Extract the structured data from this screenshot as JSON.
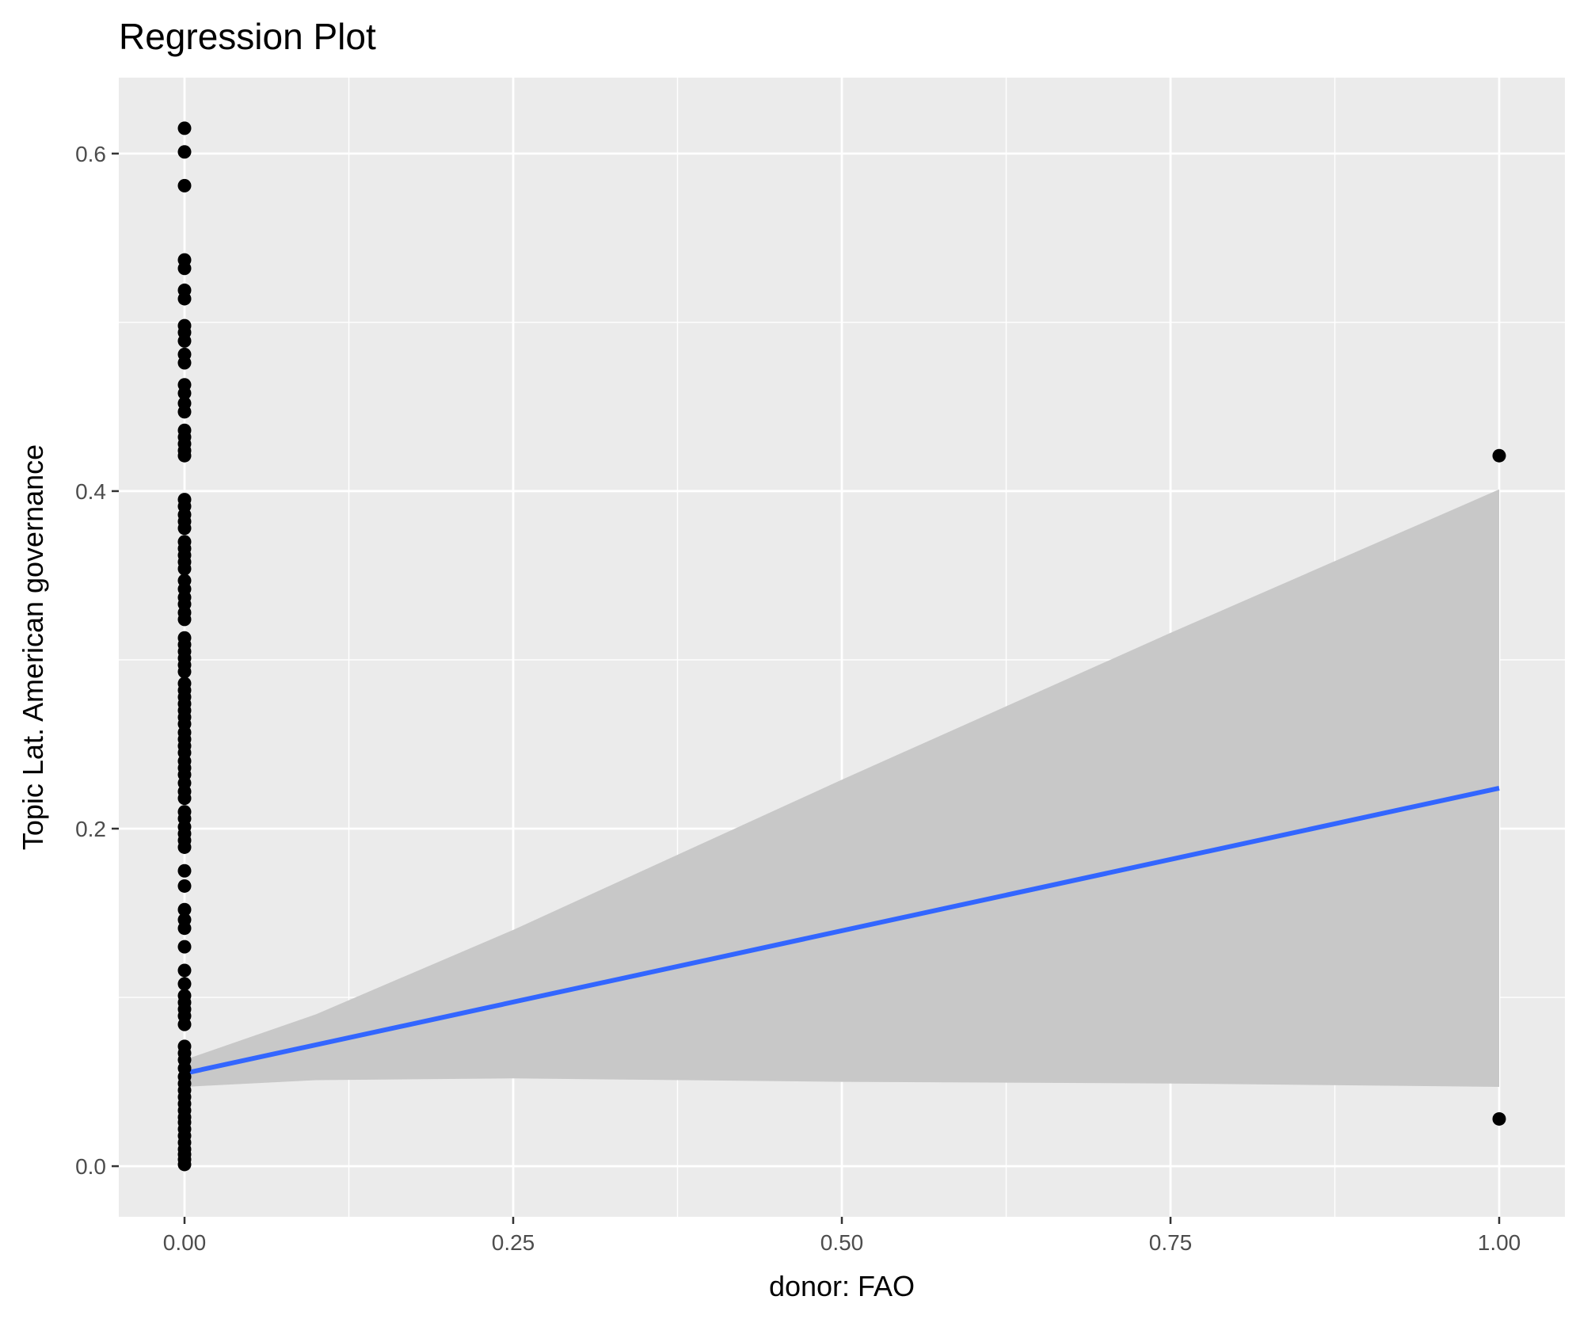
{
  "chart_data": {
    "type": "scatter",
    "title": "Regression Plot",
    "xlabel": "donor: FAO",
    "ylabel": "Topic Lat. American governance",
    "xlim": [
      -0.05,
      1.05
    ],
    "ylim": [
      -0.03,
      0.645
    ],
    "x_ticks": [
      0.0,
      0.25,
      0.5,
      0.75,
      1.0
    ],
    "x_tick_labels": [
      "0.00",
      "0.25",
      "0.50",
      "0.75",
      "1.00"
    ],
    "y_ticks": [
      0.0,
      0.2,
      0.4,
      0.6
    ],
    "y_tick_labels": [
      "0.0",
      "0.2",
      "0.4",
      "0.6"
    ],
    "grid": true,
    "legend": "none",
    "colors": {
      "panel": "#ebebeb",
      "grid": "#ffffff",
      "points": "#000000",
      "fit_line": "#3366ff",
      "confidence_band": "#c8c8c8"
    },
    "points": {
      "x0_y_values": [
        0.615,
        0.601,
        0.581,
        0.537,
        0.532,
        0.519,
        0.514,
        0.498,
        0.494,
        0.489,
        0.481,
        0.476,
        0.463,
        0.458,
        0.452,
        0.447,
        0.436,
        0.432,
        0.428,
        0.424,
        0.421,
        0.395,
        0.391,
        0.386,
        0.382,
        0.378,
        0.37,
        0.366,
        0.362,
        0.358,
        0.354,
        0.347,
        0.342,
        0.337,
        0.333,
        0.328,
        0.324,
        0.313,
        0.309,
        0.305,
        0.301,
        0.297,
        0.293,
        0.286,
        0.282,
        0.278,
        0.274,
        0.27,
        0.266,
        0.262,
        0.257,
        0.253,
        0.249,
        0.245,
        0.24,
        0.236,
        0.232,
        0.227,
        0.222,
        0.218,
        0.21,
        0.206,
        0.201,
        0.197,
        0.193,
        0.189,
        0.175,
        0.166,
        0.152,
        0.146,
        0.141,
        0.13,
        0.116,
        0.108,
        0.101,
        0.097,
        0.093,
        0.089,
        0.084,
        0.071,
        0.067,
        0.063,
        0.058,
        0.053,
        0.049,
        0.045,
        0.041,
        0.037,
        0.033,
        0.029,
        0.026,
        0.022,
        0.018,
        0.014,
        0.01,
        0.007,
        0.004,
        0.001
      ],
      "x1_y_values": [
        0.421,
        0.028
      ]
    },
    "fit": {
      "x": [
        0,
        1
      ],
      "y": [
        0.055,
        0.224
      ]
    },
    "confidence_band": {
      "x": [
        0,
        0.1,
        0.25,
        0.5,
        0.75,
        1.0
      ],
      "upper": [
        0.063,
        0.09,
        0.14,
        0.229,
        0.316,
        0.401
      ],
      "lower": [
        0.047,
        0.051,
        0.052,
        0.05,
        0.049,
        0.047
      ]
    }
  }
}
